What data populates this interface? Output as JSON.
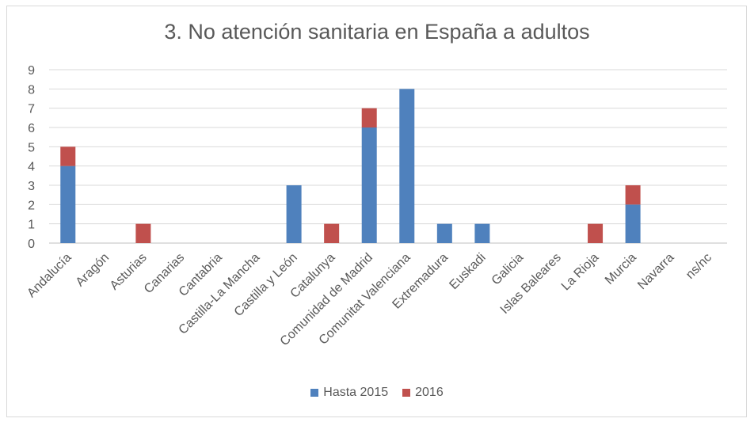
{
  "chart_data": {
    "type": "bar",
    "stacked": true,
    "title": "3. No atención sanitaria en España a adultos",
    "categories": [
      "Andalucía",
      "Aragón",
      "Asturias",
      "Canarias",
      "Cantabria",
      "Castilla-La Mancha",
      "Castilla y León",
      "Catalunya",
      "Comunidad de Madrid",
      "Comunitat Valenciana",
      "Extremadura",
      "Euskadi",
      "Galicia",
      "Islas Baleares",
      "La Rioja",
      "Murcia",
      "Navarra",
      "ns/nc"
    ],
    "series": [
      {
        "name": "Hasta 2015",
        "color": "#4f81bd",
        "values": [
          4,
          0,
          0,
          0,
          0,
          0,
          3,
          0,
          6,
          8,
          1,
          1,
          0,
          0,
          0,
          2,
          0,
          0
        ]
      },
      {
        "name": "2016",
        "color": "#c0504d",
        "values": [
          1,
          0,
          1,
          0,
          0,
          0,
          0,
          1,
          1,
          0,
          0,
          0,
          0,
          0,
          1,
          1,
          0,
          0
        ]
      }
    ],
    "ylim": [
      0,
      9
    ],
    "yticks": [
      0,
      1,
      2,
      3,
      4,
      5,
      6,
      7,
      8,
      9
    ],
    "grid": true,
    "legend_position": "bottom"
  }
}
